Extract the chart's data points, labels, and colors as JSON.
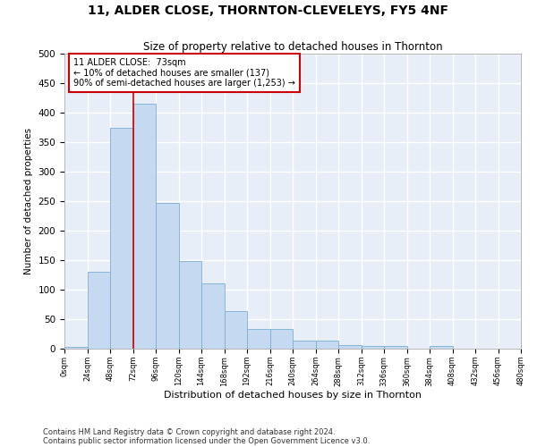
{
  "title": "11, ALDER CLOSE, THORNTON-CLEVELEYS, FY5 4NF",
  "subtitle": "Size of property relative to detached houses in Thornton",
  "xlabel": "Distribution of detached houses by size in Thornton",
  "ylabel": "Number of detached properties",
  "bar_color": "#c5d9f0",
  "bar_edge_color": "#7bafd4",
  "background_color": "#e8eef8",
  "grid_color": "#ffffff",
  "annotation_box_color": "#cc0000",
  "annotation_line_color": "#cc0000",
  "property_line_x": 72,
  "annotation_text": "11 ALDER CLOSE:  73sqm\n← 10% of detached houses are smaller (137)\n90% of semi-detached houses are larger (1,253) →",
  "footer_line1": "Contains HM Land Registry data © Crown copyright and database right 2024.",
  "footer_line2": "Contains public sector information licensed under the Open Government Licence v3.0.",
  "bins": [
    0,
    24,
    48,
    72,
    96,
    120,
    144,
    168,
    192,
    216,
    240,
    264,
    288,
    312,
    336,
    360,
    384,
    408,
    432,
    456,
    480
  ],
  "bar_heights": [
    3,
    130,
    375,
    415,
    247,
    148,
    110,
    63,
    33,
    33,
    14,
    14,
    6,
    5,
    5,
    0,
    5,
    0,
    0,
    0
  ],
  "ylim": [
    0,
    500
  ],
  "xlim": [
    0,
    480
  ],
  "yticks": [
    0,
    50,
    100,
    150,
    200,
    250,
    300,
    350,
    400,
    450,
    500
  ]
}
